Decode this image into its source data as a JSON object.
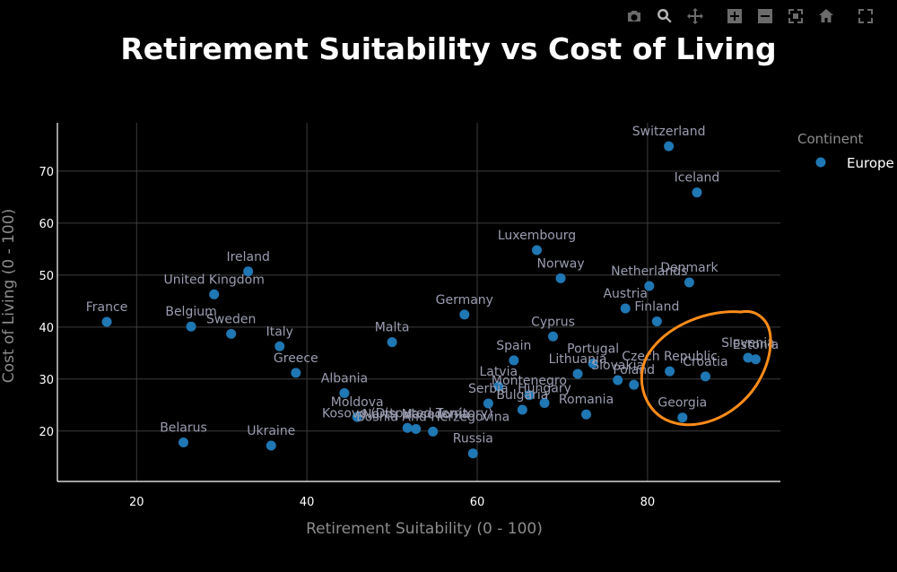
{
  "chart_data": {
    "type": "scatter",
    "title": "Retirement Suitability vs Cost of Living",
    "xlabel": "Retirement Suitability (0 - 100)",
    "ylabel": "Cost of Living (0 - 100)",
    "xlim": [
      10.7,
      95.6
    ],
    "ylim": [
      10.3,
      79.3
    ],
    "xticks": [
      20,
      40,
      60,
      80
    ],
    "yticks": [
      20,
      30,
      40,
      50,
      60,
      70
    ],
    "grid": true,
    "legend": {
      "title": "Continent",
      "placement": "top-right",
      "entries": [
        {
          "name": "Europe",
          "color": "#1f77b4"
        }
      ]
    },
    "series": [
      {
        "name": "Europe",
        "color": "#1f77b4",
        "points": [
          {
            "label": "Switzerland",
            "x": 82.5,
            "y": 74.8
          },
          {
            "label": "Iceland",
            "x": 85.8,
            "y": 65.9
          },
          {
            "label": "Luxembourg",
            "x": 67.0,
            "y": 54.8
          },
          {
            "label": "Norway",
            "x": 69.8,
            "y": 49.4
          },
          {
            "label": "Netherlands",
            "x": 80.2,
            "y": 47.9
          },
          {
            "label": "Denmark",
            "x": 84.9,
            "y": 48.6
          },
          {
            "label": "Ireland",
            "x": 33.1,
            "y": 50.7
          },
          {
            "label": "United Kingdom",
            "x": 29.1,
            "y": 46.3
          },
          {
            "label": "Austria",
            "x": 77.4,
            "y": 43.6
          },
          {
            "label": "Finland",
            "x": 81.1,
            "y": 41.1
          },
          {
            "label": "Germany",
            "x": 58.5,
            "y": 42.4
          },
          {
            "label": "France",
            "x": 16.5,
            "y": 41.0
          },
          {
            "label": "Belgium",
            "x": 26.4,
            "y": 40.1
          },
          {
            "label": "Sweden",
            "x": 31.1,
            "y": 38.7
          },
          {
            "label": "Italy",
            "x": 36.8,
            "y": 36.3
          },
          {
            "label": "Malta",
            "x": 50.0,
            "y": 37.1
          },
          {
            "label": "Cyprus",
            "x": 68.9,
            "y": 38.2
          },
          {
            "label": "Greece",
            "x": 38.7,
            "y": 31.2
          },
          {
            "label": "Spain",
            "x": 64.3,
            "y": 33.6
          },
          {
            "label": "Portugal",
            "x": 73.6,
            "y": 33.0
          },
          {
            "label": "Slovenia",
            "x": 91.8,
            "y": 34.1
          },
          {
            "label": "Estonia",
            "x": 92.7,
            "y": 33.8
          },
          {
            "label": "Czech Republic",
            "x": 82.6,
            "y": 31.5
          },
          {
            "label": "Croatia",
            "x": 86.8,
            "y": 30.5
          },
          {
            "label": "Lithuania",
            "x": 71.8,
            "y": 31.0
          },
          {
            "label": "Slovakia",
            "x": 76.5,
            "y": 29.8
          },
          {
            "label": "Poland",
            "x": 78.4,
            "y": 28.9
          },
          {
            "label": "Latvia",
            "x": 62.5,
            "y": 28.6
          },
          {
            "label": "Montenegro",
            "x": 66.1,
            "y": 26.9
          },
          {
            "label": "Serbia",
            "x": 61.3,
            "y": 25.3
          },
          {
            "label": "Hungary",
            "x": 67.9,
            "y": 25.4
          },
          {
            "label": "Bulgaria",
            "x": 65.3,
            "y": 24.1
          },
          {
            "label": "Romania",
            "x": 72.8,
            "y": 23.2
          },
          {
            "label": "Albania",
            "x": 44.4,
            "y": 27.3
          },
          {
            "label": "Moldova",
            "x": 45.9,
            "y": 22.7
          },
          {
            "label": "Bosnia And Herzegovina",
            "x": 54.8,
            "y": 19.9
          },
          {
            "label": "North Macedonia",
            "x": 52.8,
            "y": 20.4
          },
          {
            "label": "Kosovo (Disputed Territory)",
            "x": 51.8,
            "y": 20.6
          },
          {
            "label": "Russia",
            "x": 59.5,
            "y": 15.7
          },
          {
            "label": "Georgia",
            "x": 84.1,
            "y": 22.6
          },
          {
            "label": "Belarus",
            "x": 25.5,
            "y": 17.8
          },
          {
            "label": "Ukraine",
            "x": 35.8,
            "y": 17.2
          }
        ]
      }
    ],
    "annotations": [
      {
        "type": "hand-drawn-ellipse",
        "color": "#ff8c1a",
        "encloses": [
          "Slovenia",
          "Estonia",
          "Czech Republic",
          "Croatia",
          "Georgia"
        ]
      }
    ]
  },
  "colors": {
    "background": "#000000",
    "text": "#ffffff",
    "muted_text": "#8c8c8c",
    "point_label": "#9a9cb0",
    "grid": "#3c3c3c",
    "marker": "#1f77b4",
    "annotation": "#ff8c1a"
  },
  "modebar": {
    "buttons": [
      "camera-icon",
      "zoom-icon",
      "pan-icon",
      "zoom-in-icon",
      "zoom-out-icon",
      "autoscale-icon",
      "reset-axes-icon",
      "fullscreen-icon"
    ]
  }
}
